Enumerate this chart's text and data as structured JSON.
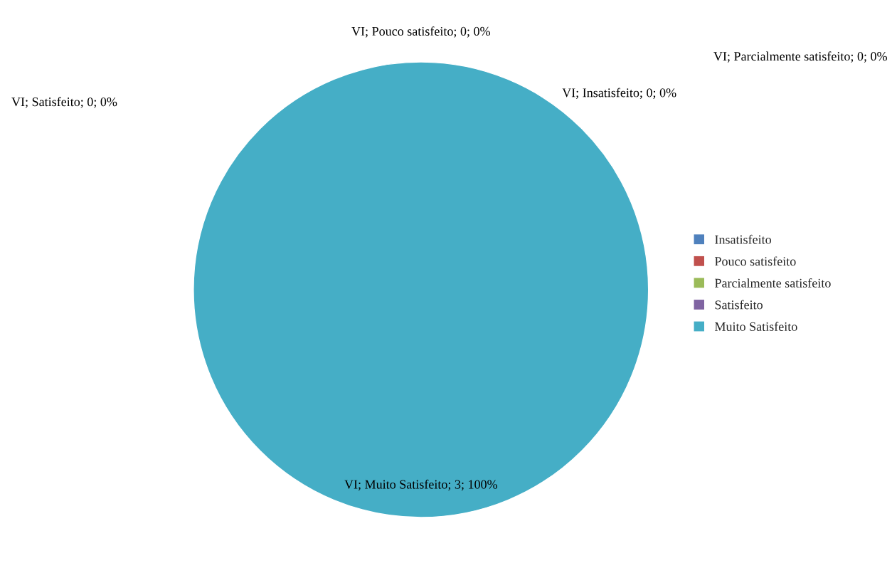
{
  "chart_data": {
    "type": "pie",
    "categories": [
      "Insatisfeito",
      "Pouco satisfeito",
      "Parcialmente satisfeito",
      "Satisfeito",
      "Muito Satisfeito"
    ],
    "values": [
      0,
      0,
      0,
      0,
      3
    ],
    "colors": [
      "#4f81bd",
      "#c0504d",
      "#9bbb59",
      "#8064a2",
      "#45aec6"
    ],
    "value_labels": [
      "VI; Insatisfeito; 0; 0%",
      "VI; Pouco satisfeito; 0; 0%",
      "VI; Parcialmente satisfeito; 0; 0%",
      "VI; Satisfeito; 0; 0%",
      "VI; Muito Satisfeito; 3; 100%"
    ],
    "legend": "right"
  }
}
